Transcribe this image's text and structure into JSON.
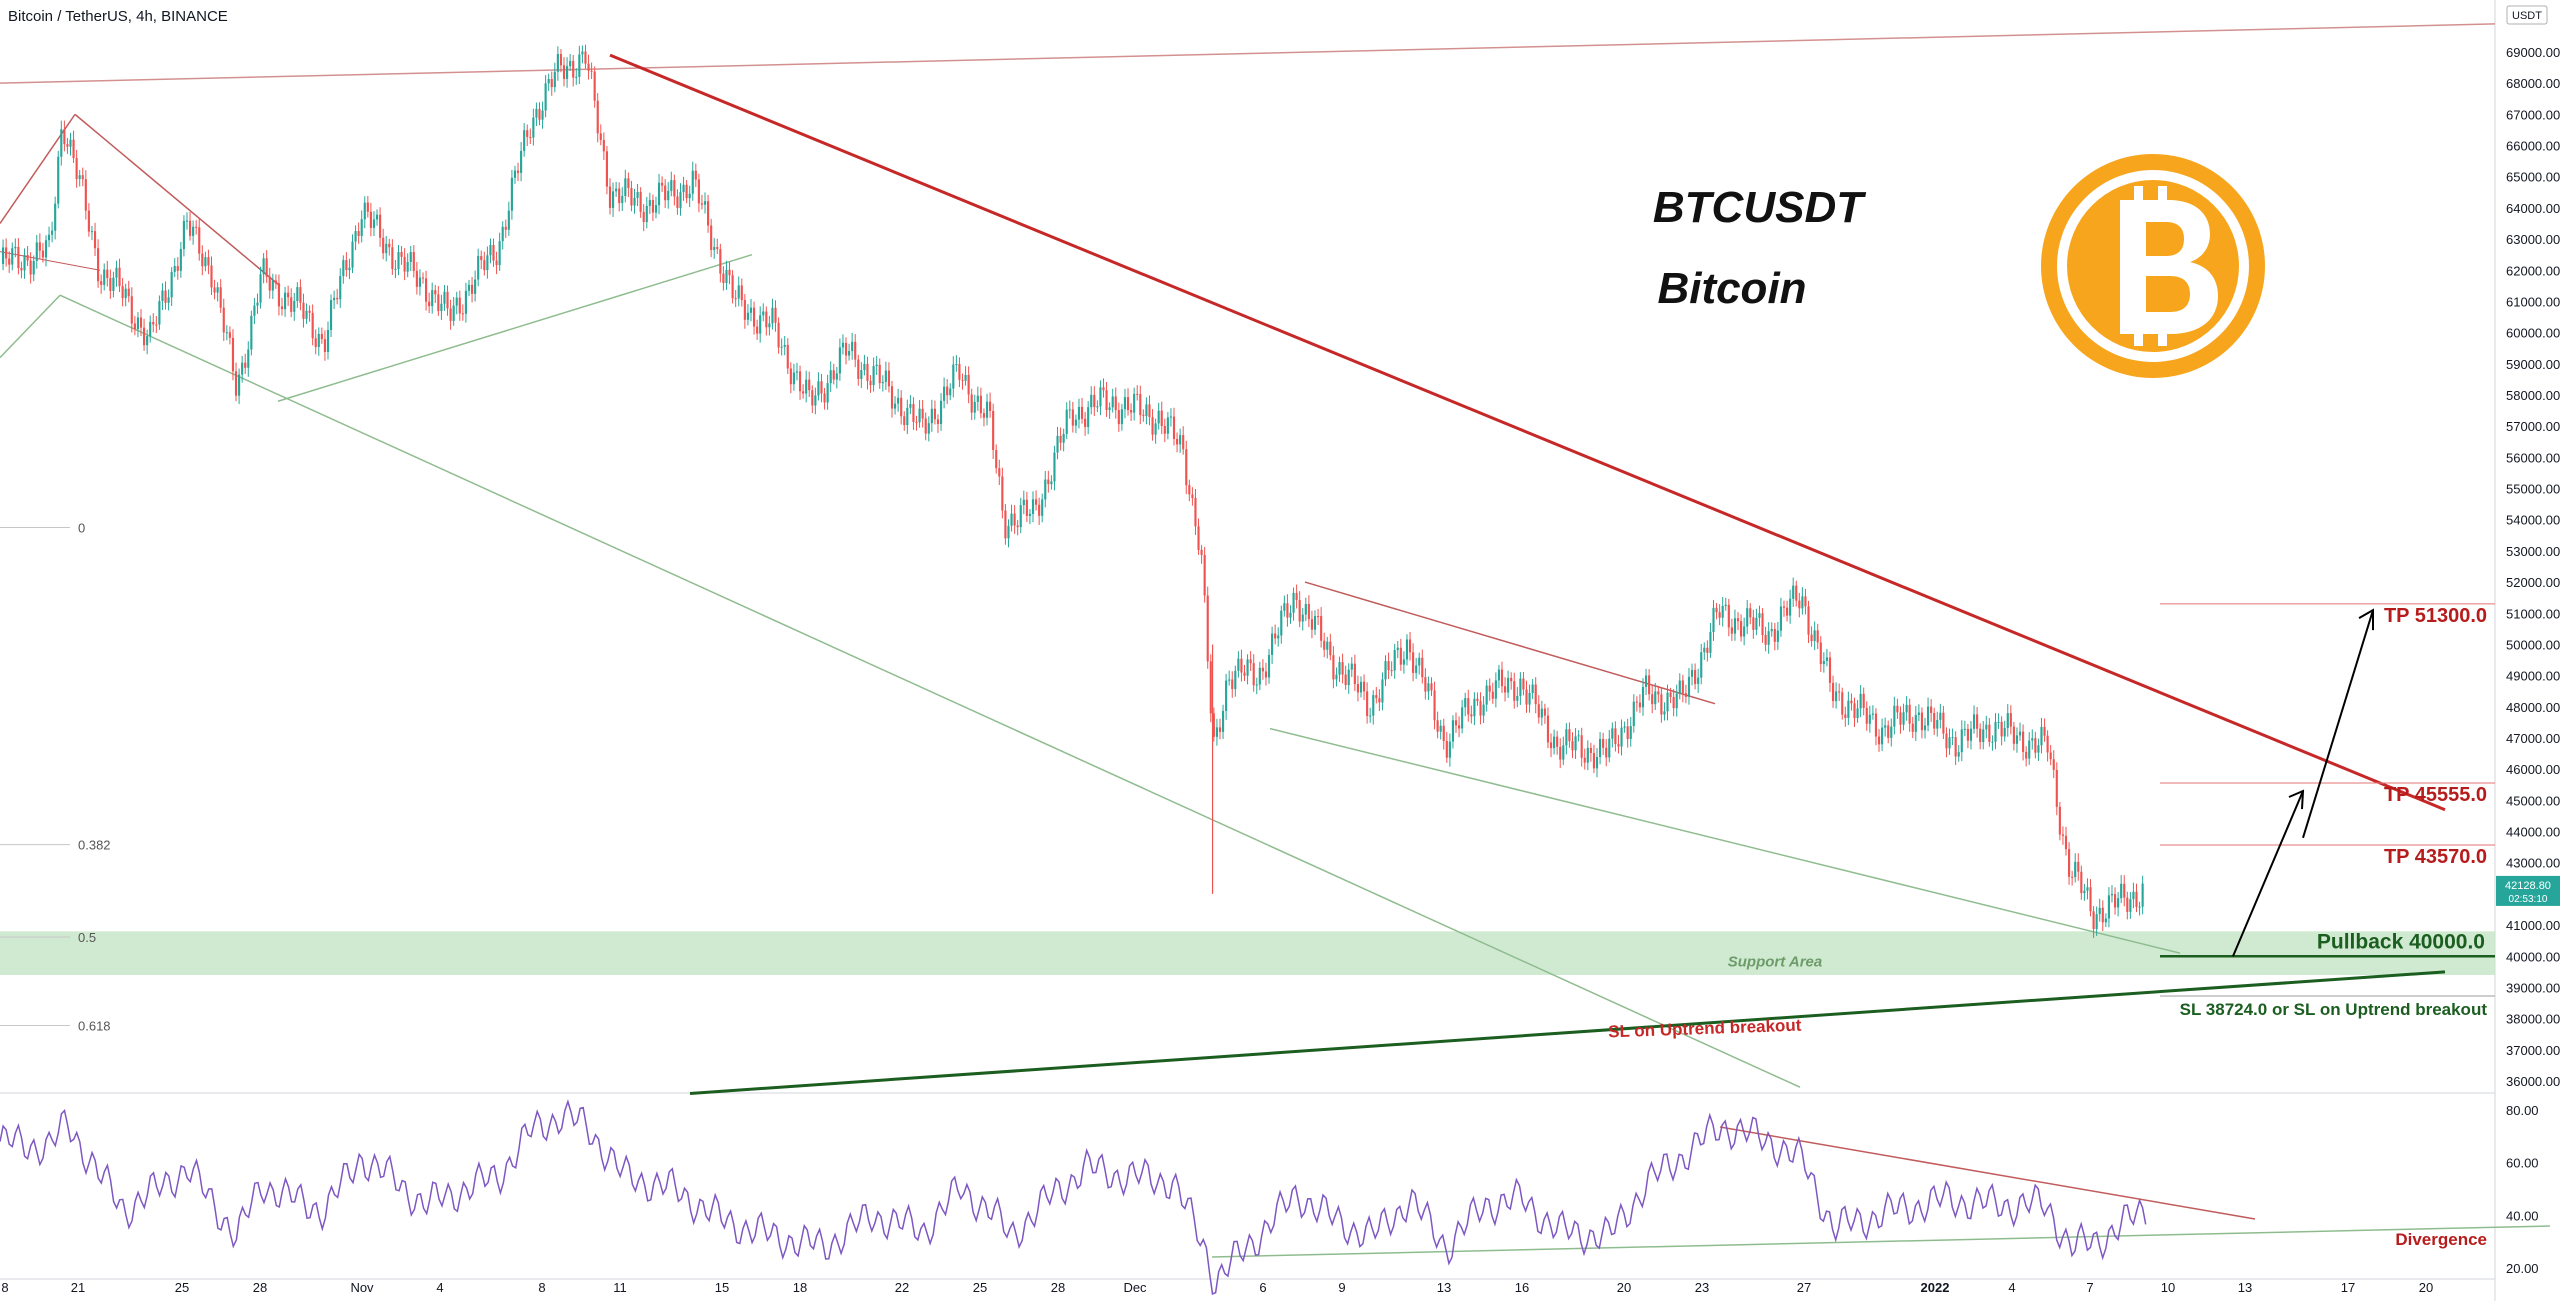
{
  "header": {
    "title": "Bitcoin / TetherUS, 4h, BINANCE"
  },
  "colors": {
    "up": "#26a69a",
    "down": "#ef5350",
    "trend": "#c62828",
    "support": "#c8e6c9",
    "green_line": "#1b5e20",
    "rsi": "#7e57c2",
    "coin": "#f7a51c"
  },
  "icons": {
    "coin": "bitcoin-logo-icon"
  },
  "chart_data": {
    "type": "candlestick",
    "symbol": "BTCUSDT",
    "subtitle": "Bitcoin",
    "currency_label": "USDT",
    "price_axis": {
      "ylim": [
        35500,
        70500
      ],
      "ticks": [
        36000,
        37000,
        38000,
        39000,
        40000,
        41000,
        42000,
        43000,
        44000,
        45000,
        46000,
        47000,
        48000,
        49000,
        50000,
        51000,
        52000,
        53000,
        54000,
        55000,
        56000,
        57000,
        58000,
        59000,
        60000,
        61000,
        62000,
        63000,
        64000,
        65000,
        66000,
        67000,
        68000,
        69000
      ]
    },
    "last_price": {
      "value": "42128.80",
      "countdown": "02:53:10"
    },
    "x_axis": {
      "ticks": [
        "8",
        "21",
        "25",
        "28",
        "Nov",
        "4",
        "8",
        "11",
        "15",
        "18",
        "22",
        "25",
        "28",
        "Dec",
        "6",
        "9",
        "13",
        "16",
        "20",
        "23",
        "27",
        "2022",
        "4",
        "7",
        "10",
        "13",
        "17",
        "20"
      ]
    },
    "price_path": [
      [
        0,
        62200
      ],
      [
        0.02,
        62600
      ],
      [
        0.025,
        66900
      ],
      [
        0.03,
        65400
      ],
      [
        0.04,
        62000
      ],
      [
        0.05,
        61200
      ],
      [
        0.06,
        59700
      ],
      [
        0.075,
        63400
      ],
      [
        0.085,
        62000
      ],
      [
        0.095,
        58200
      ],
      [
        0.105,
        61800
      ],
      [
        0.12,
        60800
      ],
      [
        0.13,
        59700
      ],
      [
        0.145,
        63900
      ],
      [
        0.16,
        62300
      ],
      [
        0.17,
        61600
      ],
      [
        0.18,
        60500
      ],
      [
        0.2,
        62800
      ],
      [
        0.213,
        66800
      ],
      [
        0.225,
        68500
      ],
      [
        0.235,
        68800
      ],
      [
        0.245,
        64500
      ],
      [
        0.26,
        64100
      ],
      [
        0.278,
        64800
      ],
      [
        0.295,
        61000
      ],
      [
        0.31,
        60200
      ],
      [
        0.325,
        57700
      ],
      [
        0.34,
        59400
      ],
      [
        0.355,
        58300
      ],
      [
        0.37,
        56900
      ],
      [
        0.385,
        58700
      ],
      [
        0.397,
        57200
      ],
      [
        0.403,
        54000
      ],
      [
        0.415,
        54200
      ],
      [
        0.43,
        57400
      ],
      [
        0.445,
        57800
      ],
      [
        0.465,
        57300
      ],
      [
        0.475,
        56200
      ],
      [
        0.482,
        53000
      ],
      [
        0.487,
        46500
      ],
      [
        0.493,
        49100
      ],
      [
        0.505,
        49000
      ],
      [
        0.52,
        51600
      ],
      [
        0.535,
        49500
      ],
      [
        0.55,
        48100
      ],
      [
        0.565,
        50100
      ],
      [
        0.58,
        46900
      ],
      [
        0.595,
        48400
      ],
      [
        0.61,
        48800
      ],
      [
        0.625,
        46800
      ],
      [
        0.645,
        46500
      ],
      [
        0.66,
        48400
      ],
      [
        0.675,
        48200
      ],
      [
        0.69,
        51000
      ],
      [
        0.71,
        50400
      ],
      [
        0.723,
        51600
      ],
      [
        0.735,
        48500
      ],
      [
        0.755,
        47300
      ],
      [
        0.77,
        47800
      ],
      [
        0.785,
        46900
      ],
      [
        0.8,
        47400
      ],
      [
        0.81,
        47000
      ],
      [
        0.822,
        46700
      ],
      [
        0.83,
        43000
      ],
      [
        0.84,
        41400
      ],
      [
        0.85,
        41700
      ],
      [
        0.86,
        42128
      ]
    ],
    "fib_levels": [
      {
        "label": "0",
        "value": 53750
      },
      {
        "label": "0.382",
        "value": 43580
      },
      {
        "label": "0.5",
        "value": 40620
      },
      {
        "label": "0.618",
        "value": 37780
      }
    ],
    "support_area": {
      "label": "Support Area",
      "low": 39400,
      "high": 40800
    },
    "levels": [
      {
        "label": "TP 51300.0",
        "value": 51300
      },
      {
        "label": "TP 45555.0",
        "value": 45555
      },
      {
        "label": "TP 43570.0",
        "value": 43570
      },
      {
        "label": "Pullback 40000.0",
        "value": 40000
      },
      {
        "label": "SL 38724.0 or SL on Uptrend breakout",
        "value": 38724
      }
    ],
    "annotations": {
      "uptrend": "SL on Uptrend breakout",
      "divergence": "Divergence"
    },
    "rsi": {
      "ticks": [
        20,
        40,
        60,
        80
      ],
      "ylim": [
        10,
        90
      ],
      "path": [
        [
          0,
          68
        ],
        [
          0.02,
          66
        ],
        [
          0.027,
          75
        ],
        [
          0.04,
          55
        ],
        [
          0.05,
          42
        ],
        [
          0.06,
          48
        ],
        [
          0.075,
          58
        ],
        [
          0.085,
          45
        ],
        [
          0.095,
          32
        ],
        [
          0.105,
          52
        ],
        [
          0.12,
          45
        ],
        [
          0.13,
          42
        ],
        [
          0.145,
          62
        ],
        [
          0.16,
          52
        ],
        [
          0.17,
          44
        ],
        [
          0.2,
          55
        ],
        [
          0.213,
          72
        ],
        [
          0.225,
          78
        ],
        [
          0.235,
          74
        ],
        [
          0.25,
          55
        ],
        [
          0.27,
          50
        ],
        [
          0.29,
          38
        ],
        [
          0.31,
          32
        ],
        [
          0.33,
          28
        ],
        [
          0.35,
          40
        ],
        [
          0.37,
          34
        ],
        [
          0.385,
          50
        ],
        [
          0.397,
          42
        ],
        [
          0.405,
          32
        ],
        [
          0.42,
          46
        ],
        [
          0.435,
          58
        ],
        [
          0.45,
          55
        ],
        [
          0.47,
          53
        ],
        [
          0.482,
          30
        ],
        [
          0.487,
          15
        ],
        [
          0.5,
          28
        ],
        [
          0.52,
          48
        ],
        [
          0.535,
          38
        ],
        [
          0.55,
          32
        ],
        [
          0.565,
          46
        ],
        [
          0.58,
          28
        ],
        [
          0.595,
          44
        ],
        [
          0.61,
          46
        ],
        [
          0.625,
          34
        ],
        [
          0.645,
          32
        ],
        [
          0.66,
          52
        ],
        [
          0.69,
          74
        ],
        [
          0.71,
          68
        ],
        [
          0.723,
          60
        ],
        [
          0.735,
          35
        ],
        [
          0.76,
          42
        ],
        [
          0.78,
          46
        ],
        [
          0.8,
          44
        ],
        [
          0.82,
          44
        ],
        [
          0.83,
          28
        ],
        [
          0.84,
          30
        ],
        [
          0.85,
          36
        ],
        [
          0.86,
          42
        ]
      ]
    }
  }
}
